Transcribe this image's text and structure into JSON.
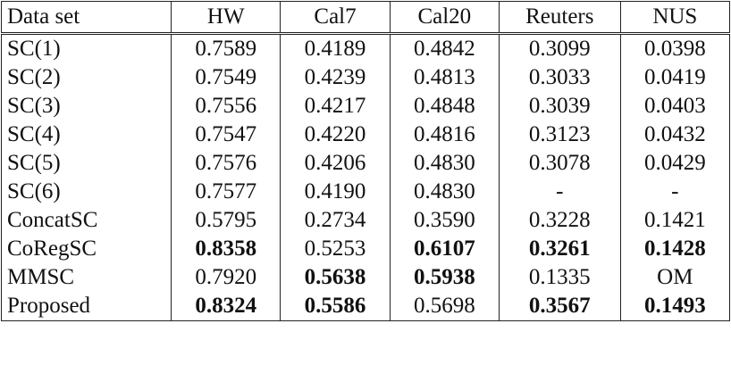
{
  "table": {
    "header": [
      "Data set",
      "HW",
      "Cal7",
      "Cal20",
      "Reuters",
      "NUS"
    ],
    "rows": [
      [
        "SC(1)",
        "0.7589",
        "0.4189",
        "0.4842",
        "0.3099",
        "0.0398"
      ],
      [
        "SC(2)",
        "0.7549",
        "0.4239",
        "0.4813",
        "0.3033",
        "0.0419"
      ],
      [
        "SC(3)",
        "0.7556",
        "0.4217",
        "0.4848",
        "0.3039",
        "0.0403"
      ],
      [
        "SC(4)",
        "0.7547",
        "0.4220",
        "0.4816",
        "0.3123",
        "0.0432"
      ],
      [
        "SC(5)",
        "0.7576",
        "0.4206",
        "0.4830",
        "0.3078",
        "0.0429"
      ],
      [
        "SC(6)",
        "0.7577",
        "0.4190",
        "0.4830",
        "-",
        "-"
      ],
      [
        "ConcatSC",
        "0.5795",
        "0.2734",
        "0.3590",
        "0.3228",
        "0.1421"
      ],
      [
        "CoRegSC",
        "0.8358",
        "0.5253",
        "0.6107",
        "0.3261",
        "0.1428"
      ],
      [
        "MMSC",
        "0.7920",
        "0.5638",
        "0.5938",
        "0.1335",
        "OM"
      ],
      [
        "Proposed",
        "0.8324",
        "0.5586",
        "0.5698",
        "0.3567",
        "0.1493"
      ]
    ],
    "bold": [
      [],
      [],
      [],
      [],
      [],
      [],
      [],
      [
        1,
        3,
        4,
        5
      ],
      [
        2,
        3
      ],
      [
        1,
        2,
        4,
        5
      ]
    ]
  }
}
